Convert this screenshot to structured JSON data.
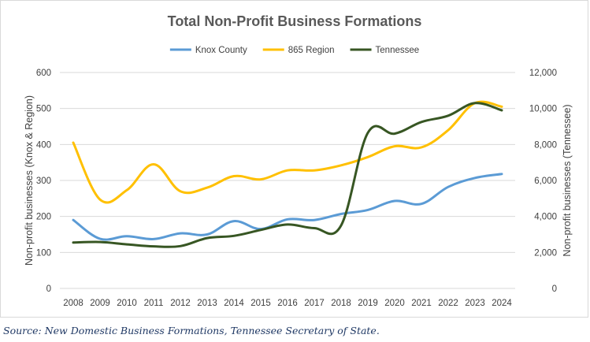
{
  "chart_data": {
    "type": "line",
    "title": "Total Non-Profit Business Formations",
    "categories": [
      "2008",
      "2009",
      "2010",
      "2011",
      "2012",
      "2013",
      "2014",
      "2015",
      "2016",
      "2017",
      "2018",
      "2019",
      "2020",
      "2021",
      "2022",
      "2023",
      "2024"
    ],
    "series": [
      {
        "name": "Knox County",
        "axis": "left",
        "color": "#5b9bd5",
        "values": [
          190,
          138,
          145,
          137,
          153,
          150,
          187,
          165,
          192,
          190,
          207,
          218,
          243,
          235,
          282,
          307,
          318
        ]
      },
      {
        "name": "865 Region",
        "axis": "left",
        "color": "#ffc000",
        "values": [
          405,
          247,
          273,
          345,
          270,
          280,
          312,
          303,
          328,
          328,
          342,
          365,
          395,
          392,
          440,
          515,
          505
        ]
      },
      {
        "name": "Tennessee",
        "axis": "right",
        "color": "#375623",
        "values": [
          2550,
          2580,
          2450,
          2340,
          2350,
          2800,
          2920,
          3250,
          3550,
          3350,
          3500,
          8650,
          8600,
          9250,
          9600,
          10300,
          9900
        ]
      }
    ],
    "ylabel": "Non-profit businesses (Knox & Region)",
    "ylim": [
      0,
      600
    ],
    "yticks": [
      "0",
      "100",
      "200",
      "300",
      "400",
      "500",
      "600"
    ],
    "y2label": "Non-profit businesses (Tennessee)",
    "y2lim": [
      0,
      12000
    ],
    "y2ticks": [
      "0",
      "2,000",
      "4,000",
      "6,000",
      "8,000",
      "10,000",
      "12,000"
    ],
    "grid": true,
    "legend_position": "top"
  },
  "source_note": "Source: New Domestic Business Formations, Tennessee Secretary of State."
}
